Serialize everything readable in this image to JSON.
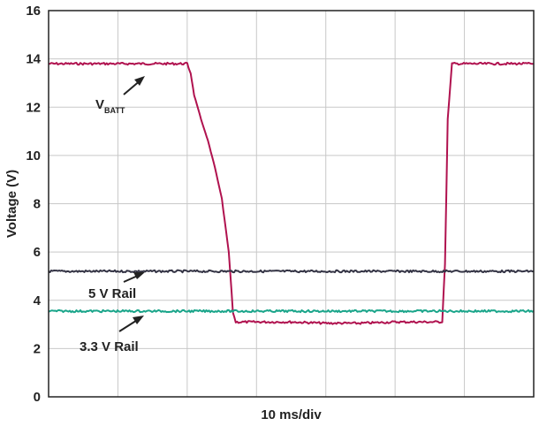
{
  "chart_data": {
    "type": "line",
    "xlabel": "10 ms/div",
    "ylabel": "Voltage (V)",
    "xlim": [
      0,
      70
    ],
    "ylim": [
      0,
      16
    ],
    "x_divisions": 7,
    "y_ticks": [
      "0",
      "2",
      "4",
      "6",
      "8",
      "10",
      "12",
      "14",
      "16"
    ],
    "grid": true,
    "series": [
      {
        "name": "VBATT",
        "label_main": "V",
        "label_sub": "BATT",
        "color": "#b0124f",
        "x": [
          0,
          20,
          20.5,
          21,
          22,
          23,
          24,
          25,
          26,
          26.6,
          27,
          28,
          30,
          35,
          40,
          45,
          50,
          55,
          56.8,
          57.2,
          57.6,
          58.2,
          70
        ],
        "y": [
          13.8,
          13.8,
          13.4,
          12.5,
          11.5,
          10.6,
          9.5,
          8.2,
          6.0,
          3.5,
          3.1,
          3.1,
          3.1,
          3.1,
          3.05,
          3.05,
          3.1,
          3.1,
          3.1,
          5.5,
          11.5,
          13.8,
          13.8
        ]
      },
      {
        "name": "5 V Rail",
        "color": "#333344",
        "x": [
          0,
          70
        ],
        "y": [
          5.2,
          5.2
        ]
      },
      {
        "name": "3.3 V Rail",
        "color": "#1aa58a",
        "x": [
          0,
          70
        ],
        "y": [
          3.55,
          3.55
        ]
      }
    ]
  }
}
